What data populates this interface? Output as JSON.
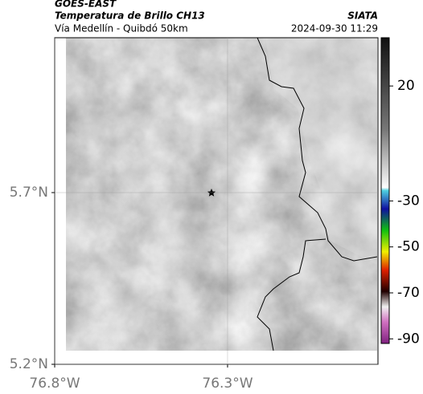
{
  "header": {
    "satellite": "GOES-EAST",
    "product": "Temperatura de Brillo CH13",
    "region": "Vía Medellín - Quibdó 50km",
    "source": "SIATA",
    "datetime": "2024-09-30 11:29"
  },
  "map": {
    "xlim": [
      -76.8,
      -75.865
    ],
    "ylim": [
      5.2,
      6.151
    ],
    "xticks": [
      {
        "value": -76.8,
        "label": "76.8°W"
      },
      {
        "value": -76.3,
        "label": "76.3°W"
      }
    ],
    "yticks": [
      {
        "value": 5.2,
        "label": "5.2°N"
      },
      {
        "value": 5.7,
        "label": "5.7°N"
      }
    ],
    "grid": true
  },
  "colorbar": {
    "clim": [
      -92,
      41
    ],
    "ticks": [
      20,
      -30,
      -50,
      -70,
      -90
    ]
  }
}
